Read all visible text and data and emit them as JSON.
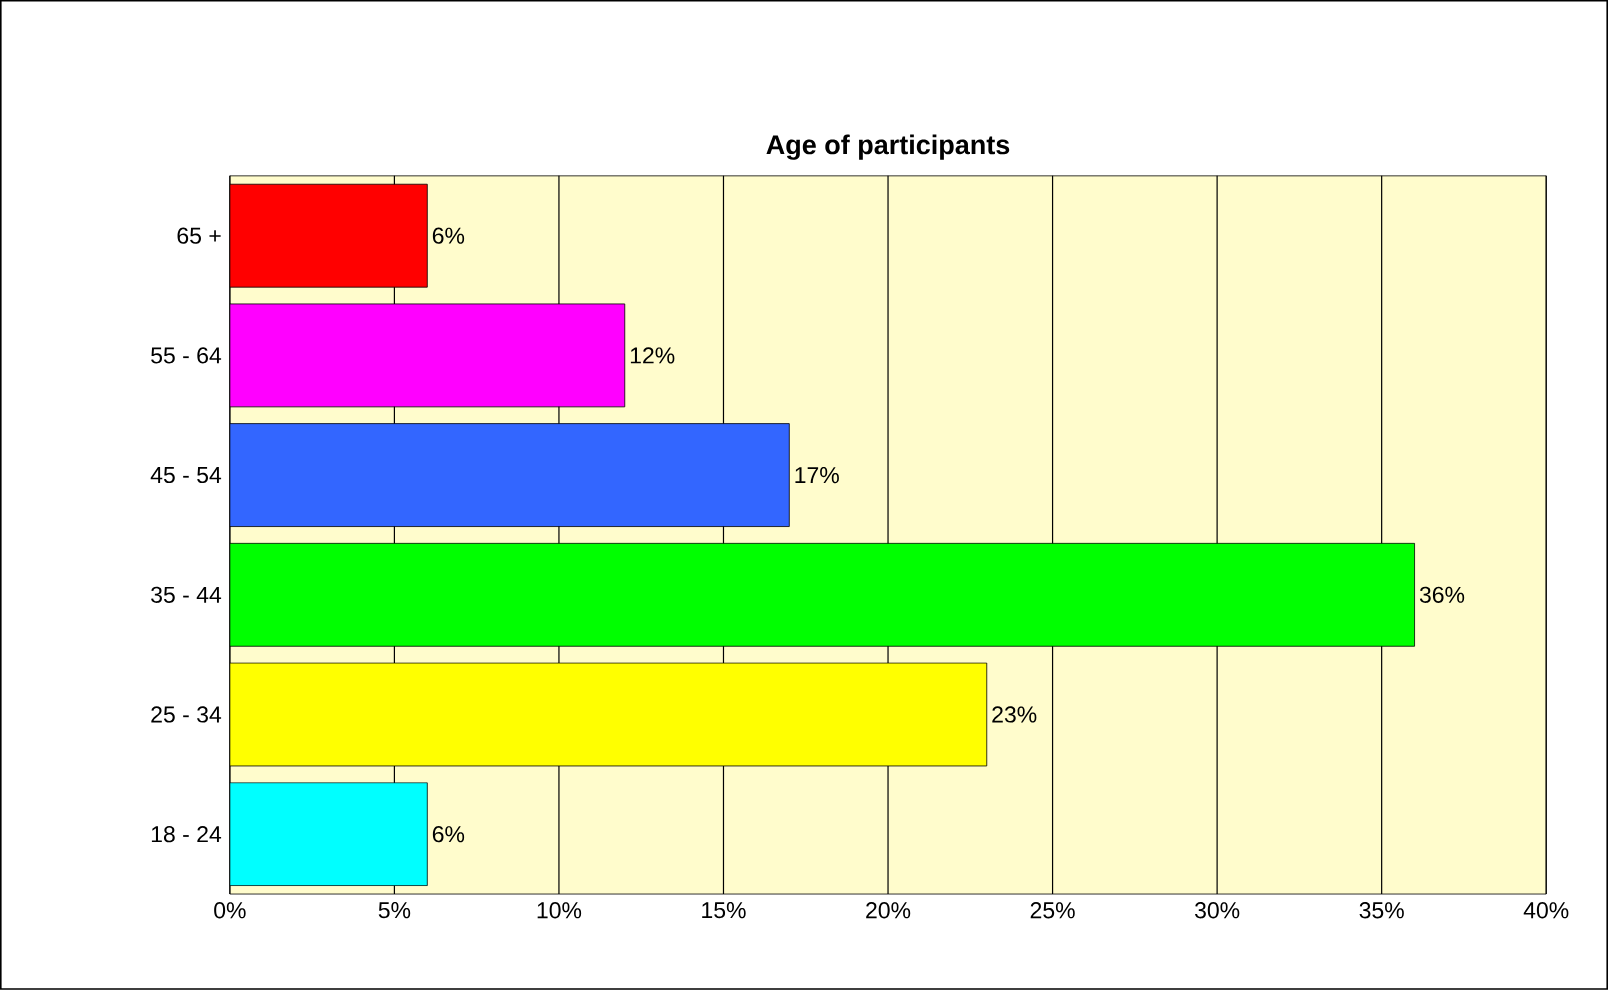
{
  "chart_data": {
    "type": "bar",
    "orientation": "horizontal",
    "title": "Age of participants",
    "categories": [
      "65 +",
      "55 - 64",
      "45 - 54",
      "35 - 44",
      "25 - 34",
      "18 - 24"
    ],
    "values": [
      6,
      12,
      17,
      36,
      23,
      6
    ],
    "colors": [
      "#ff0000",
      "#ff00ff",
      "#3366ff",
      "#00ff00",
      "#ffff00",
      "#00ffff"
    ],
    "value_labels": [
      "6%",
      "12%",
      "17%",
      "36%",
      "23%",
      "6%"
    ],
    "xlim": [
      0,
      40
    ],
    "xticks": [
      {
        "value": 0,
        "label": "0%"
      },
      {
        "value": 5,
        "label": "5%"
      },
      {
        "value": 10,
        "label": "10%"
      },
      {
        "value": 15,
        "label": "15%"
      },
      {
        "value": 20,
        "label": "20%"
      },
      {
        "value": 25,
        "label": "25%"
      },
      {
        "value": 30,
        "label": "30%"
      },
      {
        "value": 35,
        "label": "35%"
      },
      {
        "value": 40,
        "label": "40%"
      }
    ],
    "grid": "x"
  }
}
